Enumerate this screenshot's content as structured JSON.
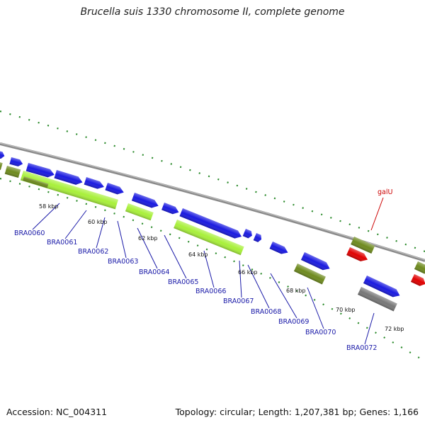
{
  "title": "Brucella suis 1330 chromosome II, complete genome",
  "footer": {
    "accession": "Accession: NC_004311",
    "stats": "Topology: circular; Length: 1,207,381 bp; Genes: 1,166"
  },
  "colors": {
    "backbone": "#8a8a8a",
    "cds": "#1a1ae0",
    "gene": "#6e8a1e",
    "rna": "#a8f03a",
    "pseudo": "#777777",
    "highlight": "#e00000",
    "tick": "#2a8a2a",
    "label": "#1a1aa8",
    "label_highlight": "#cc0000"
  },
  "kbp_labels": [
    "58 kbp",
    "60 kbp",
    "62 kbp",
    "64 kbp",
    "66 kbp",
    "68 kbp",
    "70 kbp",
    "72 kbp"
  ],
  "gene_labels": [
    "BRA0060",
    "BRA0061",
    "BRA0062",
    "BRA0063",
    "BRA0064",
    "BRA0065",
    "BRA0066",
    "BRA0067",
    "BRA0068",
    "BRA0069",
    "BRA0070",
    "BRA0072"
  ],
  "highlight_label": "galU"
}
